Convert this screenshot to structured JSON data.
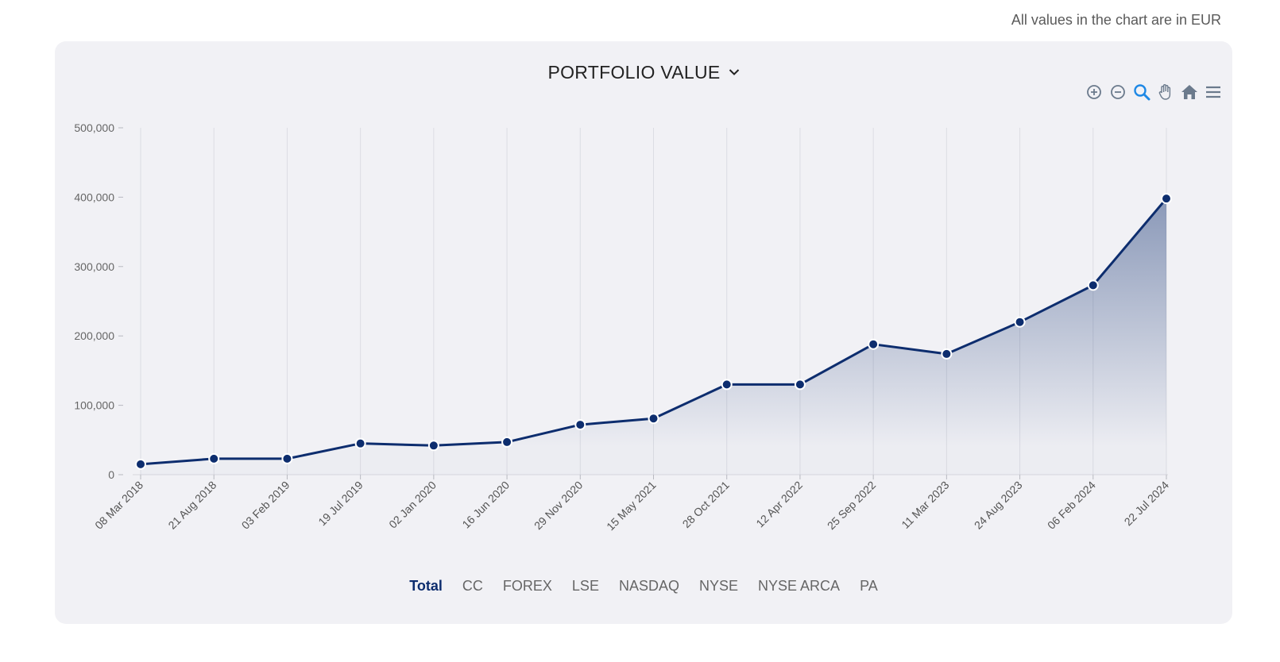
{
  "header": {
    "currency_note": "All values in the chart are in EUR"
  },
  "card": {
    "title": "PORTFOLIO VALUE"
  },
  "toolbar": {
    "items": [
      {
        "name": "zoom-in-icon"
      },
      {
        "name": "zoom-out-icon"
      },
      {
        "name": "selection-zoom-icon",
        "active": true
      },
      {
        "name": "pan-icon"
      },
      {
        "name": "home-icon"
      },
      {
        "name": "menu-icon"
      }
    ]
  },
  "legend": {
    "items": [
      "Total",
      "CC",
      "FOREX",
      "LSE",
      "NASDAQ",
      "NYSE",
      "NYSE ARCA",
      "PA"
    ],
    "active": "Total"
  },
  "colors": {
    "line": "#0d2d6e",
    "accent": "#1e88e5",
    "icon": "#6b7a8c",
    "grid": "#dcdde3"
  },
  "chart_data": {
    "type": "area",
    "title": "PORTFOLIO VALUE",
    "currency": "EUR",
    "categories": [
      "08 Mar 2018",
      "21 Aug 2018",
      "03 Feb 2019",
      "19 Jul 2019",
      "02 Jan 2020",
      "16 Jun 2020",
      "29 Nov 2020",
      "15 May 2021",
      "28 Oct 2021",
      "12 Apr 2022",
      "25 Sep 2022",
      "11 Mar 2023",
      "24 Aug 2023",
      "06 Feb 2024",
      "22 Jul 2024"
    ],
    "series": [
      {
        "name": "Total",
        "values": [
          15000,
          23000,
          23000,
          45000,
          42000,
          47000,
          72000,
          81000,
          130000,
          130000,
          188000,
          174000,
          220000,
          273000,
          398000
        ]
      }
    ],
    "ylim": [
      0,
      500000
    ],
    "yticks": [
      0,
      100000,
      200000,
      300000,
      400000,
      500000
    ],
    "ytick_labels": [
      "0",
      "100,000",
      "200,000",
      "300,000",
      "400,000",
      "500,000"
    ],
    "grid": true,
    "xlabel": "",
    "ylabel": ""
  }
}
